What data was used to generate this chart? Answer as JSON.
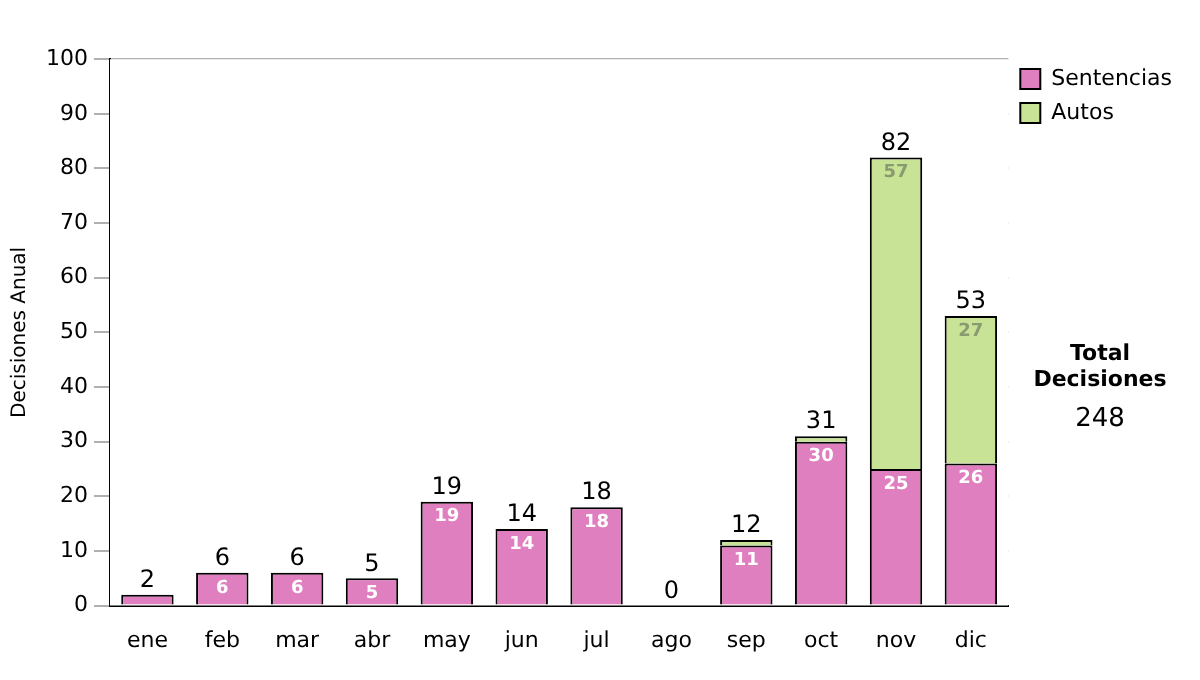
{
  "chart_data": {
    "type": "bar",
    "ylabel": "Decisiones Anual",
    "categories": [
      "ene",
      "feb",
      "mar",
      "abr",
      "may",
      "jun",
      "jul",
      "ago",
      "sep",
      "oct",
      "nov",
      "dic"
    ],
    "series": [
      {
        "name": "Sentencias",
        "color": "#e07fc0",
        "values": [
          2,
          6,
          6,
          5,
          19,
          14,
          18,
          0,
          11,
          30,
          25,
          26
        ],
        "value_labels": [
          null,
          "6",
          "6",
          "5",
          "19",
          "14",
          "18",
          null,
          "11",
          "30",
          "25",
          "26"
        ]
      },
      {
        "name": "Autos",
        "color": "#c8e296",
        "values": [
          0,
          0,
          0,
          0,
          0,
          0,
          0,
          0,
          1,
          1,
          57,
          27
        ],
        "value_labels": [
          null,
          null,
          null,
          null,
          null,
          null,
          null,
          null,
          null,
          null,
          "57",
          "27"
        ]
      }
    ],
    "stacked": true,
    "totals": [
      "2",
      "6",
      "6",
      "5",
      "19",
      "14",
      "18",
      "0",
      "12",
      "31",
      "82",
      "53"
    ],
    "ylim": [
      0,
      100
    ],
    "yticks": [
      0,
      10,
      20,
      30,
      40,
      50,
      60,
      70,
      80,
      90,
      100
    ],
    "grid": "y",
    "legend": "right",
    "annotations": [
      "Total Decisiones",
      "248"
    ]
  }
}
